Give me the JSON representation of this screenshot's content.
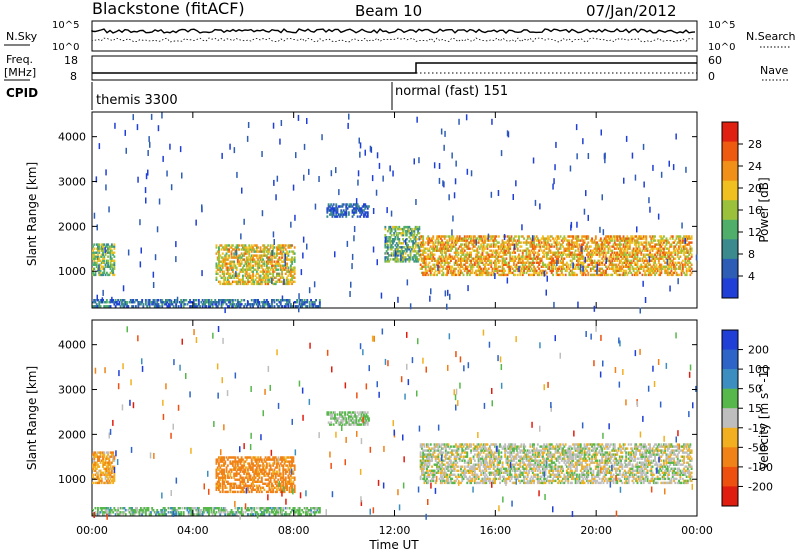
{
  "header": {
    "station": "Blackstone (fitACF)",
    "beam": "Beam 10",
    "date": "07/Jan/2012"
  },
  "noise_panel": {
    "left_label": "N.Sky",
    "left_ticks": [
      "10^5",
      "10^0"
    ],
    "right_label": "N.Search",
    "right_ticks": [
      "10^5",
      "10^0"
    ]
  },
  "freq_panel": {
    "left_label_line1": "Freq.",
    "left_label_line2": "[MHz]",
    "left_ticks": [
      "18",
      "8"
    ],
    "right_label": "Nave",
    "right_ticks": [
      "60",
      "0"
    ]
  },
  "cpid": {
    "label": "CPID",
    "segments": [
      {
        "text": "themis 3300",
        "start_hour": 0.0
      },
      {
        "text": "normal (fast) 151",
        "start_hour": 12.0
      }
    ]
  },
  "axes": {
    "xlabel": "Time UT",
    "x_ticks": [
      "00:00",
      "04:00",
      "08:00",
      "12:00",
      "16:00",
      "20:00",
      "00:00"
    ],
    "ylabel": "Slant Range [km]",
    "y_ticks": [
      "1000",
      "2000",
      "3000",
      "4000"
    ]
  },
  "power_colorbar": {
    "label": "Power [dB]",
    "ticks": [
      "4",
      "8",
      "12",
      "16",
      "20",
      "24",
      "28"
    ],
    "colors": [
      "#1f3fd6",
      "#2e5db5",
      "#3a8a8e",
      "#4fae6a",
      "#9bc13c",
      "#f0c020",
      "#f09018",
      "#ee5a10",
      "#e02010"
    ]
  },
  "velocity_colorbar": {
    "label": "Velocity [m s^-1]",
    "ticks": [
      "200",
      "100",
      "50",
      "15",
      "-15",
      "-50",
      "-100",
      "-200"
    ],
    "colors": [
      "#1f3fd6",
      "#2e64c8",
      "#3c8ec0",
      "#56b84a",
      "#bebebe",
      "#f2b020",
      "#f08218",
      "#ee5010",
      "#e01e10"
    ]
  },
  "chart_data": {
    "type": "heatmap",
    "title": "Blackstone (fitACF)   Beam 10   07/Jan/2012",
    "xlabel": "Time UT",
    "ylabel": "Slant Range [km]",
    "xlim_hours": [
      0,
      24
    ],
    "ylim_km": [
      180,
      4550
    ],
    "panels": [
      {
        "quantity": "Power",
        "unit": "dB",
        "colorbar_range": [
          0,
          30
        ],
        "regions": [
          {
            "t": [
              0.0,
              0.9
            ],
            "range_km": [
              900,
              1600
            ],
            "value_dB": 14
          },
          {
            "t": [
              4.9,
              8.0
            ],
            "range_km": [
              700,
              1600
            ],
            "value_dB": 18
          },
          {
            "t": [
              9.3,
              11.0
            ],
            "range_km": [
              2200,
              2500
            ],
            "value_dB": 4
          },
          {
            "t": [
              11.6,
              13.0
            ],
            "range_km": [
              1200,
              2000
            ],
            "value_dB": 12
          },
          {
            "t": [
              13.0,
              23.8
            ],
            "range_km": [
              900,
              1800
            ],
            "value_dB": 20
          },
          {
            "t": [
              0.0,
              9.0
            ],
            "range_km": [
              200,
              350
            ],
            "value_dB": 6
          }
        ]
      },
      {
        "quantity": "Velocity",
        "unit": "m s^-1",
        "colorbar_range": [
          -200,
          200
        ],
        "regions": [
          {
            "t": [
              0.0,
              0.9
            ],
            "range_km": [
              900,
              1600
            ],
            "value_ms": -40
          },
          {
            "t": [
              4.9,
              8.0
            ],
            "range_km": [
              700,
              1500
            ],
            "value_ms": -70
          },
          {
            "t": [
              9.3,
              11.0
            ],
            "range_km": [
              2200,
              2500
            ],
            "value_ms": 20
          },
          {
            "t": [
              13.0,
              23.8
            ],
            "range_km": [
              900,
              1800
            ],
            "value_ms": 0
          },
          {
            "t": [
              0.0,
              9.0
            ],
            "range_km": [
              200,
              350
            ],
            "value_ms": 30
          }
        ]
      }
    ]
  }
}
